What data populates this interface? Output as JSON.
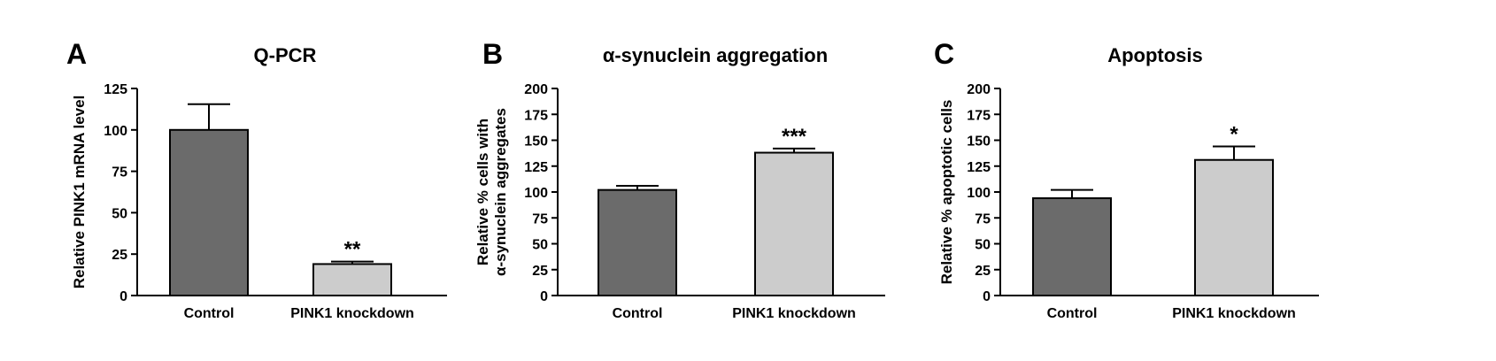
{
  "colors": {
    "control_bar": "#6b6b6b",
    "knockdown_bar": "#cccccc",
    "axis": "#000000"
  },
  "chart_data": [
    {
      "type": "bar",
      "panel": "A",
      "title": "Q-PCR",
      "ylabel": [
        "Relative PINK1 mRNA level"
      ],
      "categories": [
        "Control",
        "PINK1 knockdown"
      ],
      "values": [
        100,
        19
      ],
      "errors": [
        15.5,
        1.5
      ],
      "significance": [
        "",
        "**"
      ],
      "ylim": [
        0,
        125
      ],
      "yticks": [
        0,
        25,
        50,
        75,
        100,
        125
      ],
      "grid": false,
      "legend": "none"
    },
    {
      "type": "bar",
      "panel": "B",
      "title": "α-synuclein aggregation",
      "ylabel": [
        "Relative % cells with",
        "α-synuclein aggregates"
      ],
      "categories": [
        "Control",
        "PINK1 knockdown"
      ],
      "values": [
        102,
        138
      ],
      "errors": [
        4,
        4
      ],
      "significance": [
        "",
        "***"
      ],
      "ylim": [
        0,
        200
      ],
      "yticks": [
        0,
        25,
        50,
        75,
        100,
        125,
        150,
        175,
        200
      ],
      "grid": false,
      "legend": "none"
    },
    {
      "type": "bar",
      "panel": "C",
      "title": "Apoptosis",
      "ylabel": [
        "Relative % apoptotic cells"
      ],
      "categories": [
        "Control",
        "PINK1 knockdown"
      ],
      "values": [
        94,
        131
      ],
      "errors": [
        8,
        13
      ],
      "significance": [
        "",
        "*"
      ],
      "ylim": [
        0,
        200
      ],
      "yticks": [
        0,
        25,
        50,
        75,
        100,
        125,
        150,
        175,
        200
      ],
      "grid": false,
      "legend": "none"
    }
  ]
}
